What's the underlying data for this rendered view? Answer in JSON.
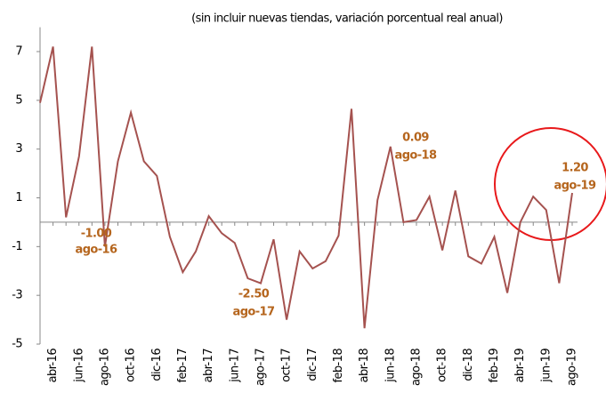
{
  "chart_data": {
    "type": "line",
    "subtitle": "(sin incluir nuevas tiendas, variación porcentual real anual)",
    "categories": [
      null,
      "abr-16",
      null,
      "jun-16",
      null,
      "ago-16",
      null,
      "oct-16",
      null,
      "dic-16",
      null,
      "feb-17",
      null,
      "abr-17",
      null,
      "jun-17",
      null,
      "ago-17",
      null,
      "oct-17",
      null,
      "dic-17",
      null,
      "feb-18",
      null,
      "abr-18",
      null,
      "jun-18",
      null,
      "ago-18",
      null,
      "oct-18",
      null,
      "dic-18",
      null,
      "feb-19",
      null,
      "abr-19",
      null,
      "jun-19",
      null,
      "ago-19"
    ],
    "values": [
      4.9,
      7.2,
      0.2,
      2.7,
      7.2,
      -1.0,
      2.5,
      4.5,
      2.5,
      1.9,
      -0.6,
      -2.05,
      -1.2,
      0.25,
      -0.45,
      -0.85,
      -2.3,
      -2.5,
      -0.7,
      -4.0,
      -1.2,
      -1.9,
      -1.6,
      -0.55,
      4.65,
      -4.35,
      0.9,
      3.1,
      0.0,
      0.09,
      1.05,
      -1.15,
      1.3,
      -1.4,
      -1.7,
      -0.6,
      -2.9,
      0.0,
      1.05,
      0.5,
      -2.5,
      1.2
    ],
    "color": "#a5524f",
    "ylim": [
      -5,
      8
    ],
    "yticks": [
      -5,
      -3,
      -1,
      1,
      3,
      5,
      7
    ],
    "annotations": [
      {
        "value": "-1.00",
        "date": "ago-16"
      },
      {
        "value": "-2.50",
        "date": "ago-17"
      },
      {
        "value": "0.09",
        "date": "ago-18"
      },
      {
        "value": "1.20",
        "date": "ago-19"
      }
    ]
  }
}
